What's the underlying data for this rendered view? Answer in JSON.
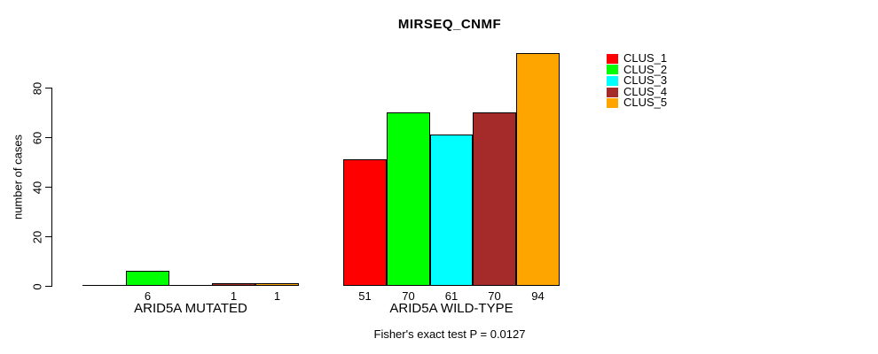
{
  "title": "MIRSEQ_CNMF",
  "caption": "Fisher's exact test P = 0.0127",
  "chart_data": {
    "type": "bar",
    "title": "MIRSEQ_CNMF",
    "xlabel": "",
    "ylabel": "number of cases",
    "yticks": [
      0,
      20,
      40,
      60,
      80
    ],
    "ylim": [
      0,
      94
    ],
    "grid": false,
    "legend_position": "top-right",
    "series": [
      {
        "name": "CLUS_1",
        "color": "#ff0000",
        "values": [
          0,
          51
        ]
      },
      {
        "name": "CLUS_2",
        "color": "#00ff00",
        "values": [
          6,
          70
        ]
      },
      {
        "name": "CLUS_3",
        "color": "#00ffff",
        "values": [
          0,
          61
        ]
      },
      {
        "name": "CLUS_4",
        "color": "#a52a2a",
        "values": [
          1,
          70
        ]
      },
      {
        "name": "CLUS_5",
        "color": "#ffa500",
        "values": [
          1,
          94
        ]
      }
    ],
    "groups": [
      {
        "label": "ARID5A MUTATED",
        "values": [
          0,
          6,
          0,
          1,
          1
        ],
        "bar_labels": [
          "",
          "6",
          "",
          "1",
          "1"
        ]
      },
      {
        "label": "ARID5A WILD-TYPE",
        "values": [
          51,
          70,
          61,
          70,
          94
        ],
        "bar_labels": [
          "51",
          "70",
          "61",
          "70",
          "94"
        ]
      }
    ],
    "caption": "Fisher's exact test P = 0.0127"
  }
}
